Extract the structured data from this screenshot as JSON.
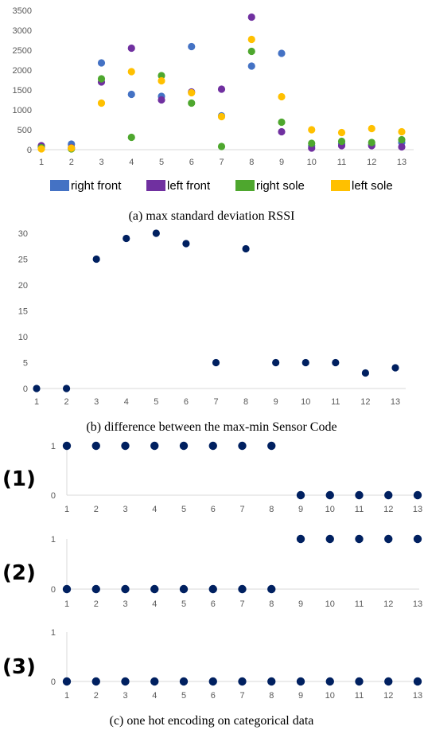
{
  "chart_data": [
    {
      "type": "scatter",
      "caption": "(a) max standard deviation RSSI",
      "x": [
        1,
        2,
        3,
        4,
        5,
        6,
        7,
        8,
        9,
        10,
        11,
        12,
        13
      ],
      "yticks": [
        0,
        500,
        1000,
        1500,
        2000,
        2500,
        3000,
        3500
      ],
      "ylim": [
        0,
        3500
      ],
      "grid": false,
      "legend_position": "bottom",
      "series": [
        {
          "name": "right front",
          "color": "#4472C4",
          "values": [
            90,
            140,
            2180,
            1390,
            1340,
            2590,
            850,
            2100,
            2420,
            100,
            150,
            130,
            180
          ]
        },
        {
          "name": "left front",
          "color": "#7030A0",
          "values": [
            100,
            50,
            1700,
            2550,
            1250,
            1450,
            1520,
            3330,
            450,
            40,
            100,
            100,
            70
          ]
        },
        {
          "name": "right sole",
          "color": "#4EA72E",
          "values": [
            50,
            20,
            1780,
            310,
            1860,
            1170,
            80,
            2470,
            690,
            160,
            210,
            180,
            250
          ]
        },
        {
          "name": "left sole",
          "color": "#FFC000",
          "values": [
            20,
            40,
            1170,
            1960,
            1730,
            1430,
            830,
            2770,
            1330,
            500,
            430,
            530,
            450
          ]
        }
      ]
    },
    {
      "type": "scatter",
      "caption": "(b) difference between the max-min Sensor Code",
      "x": [
        1,
        2,
        3,
        4,
        5,
        6,
        7,
        8,
        9,
        10,
        11,
        12,
        13
      ],
      "yticks": [
        0,
        5,
        10,
        15,
        20,
        25,
        30
      ],
      "ylim": [
        0,
        30
      ],
      "grid": false,
      "series": [
        {
          "color": "#002060",
          "values": [
            0,
            0,
            25,
            29,
            30,
            28,
            5,
            27,
            5,
            5,
            5,
            3,
            4
          ]
        }
      ]
    },
    {
      "type": "scatter",
      "label": "(1)",
      "x": [
        1,
        2,
        3,
        4,
        5,
        6,
        7,
        8,
        9,
        10,
        11,
        12,
        13
      ],
      "yticks": [
        0,
        1
      ],
      "ylim": [
        0,
        1
      ],
      "series": [
        {
          "color": "#002060",
          "values": [
            1,
            1,
            1,
            1,
            1,
            1,
            1,
            1,
            0,
            0,
            0,
            0,
            0
          ]
        }
      ]
    },
    {
      "type": "scatter",
      "label": "(2)",
      "x": [
        1,
        2,
        3,
        4,
        5,
        6,
        7,
        8,
        9,
        10,
        11,
        12,
        13
      ],
      "yticks": [
        0,
        1
      ],
      "ylim": [
        0,
        1
      ],
      "series": [
        {
          "color": "#002060",
          "values": [
            0,
            0,
            0,
            0,
            0,
            0,
            0,
            0,
            1,
            1,
            1,
            1,
            1
          ]
        }
      ]
    },
    {
      "type": "scatter",
      "label": "(3)",
      "caption": "(c) one hot encoding on categorical data",
      "x": [
        1,
        2,
        3,
        4,
        5,
        6,
        7,
        8,
        9,
        10,
        11,
        12,
        13
      ],
      "yticks": [
        0,
        1
      ],
      "ylim": [
        0,
        1
      ],
      "series": [
        {
          "color": "#002060",
          "values": [
            0,
            0,
            0,
            0,
            0,
            0,
            0,
            0,
            0,
            0,
            0,
            0,
            0
          ]
        }
      ]
    }
  ]
}
